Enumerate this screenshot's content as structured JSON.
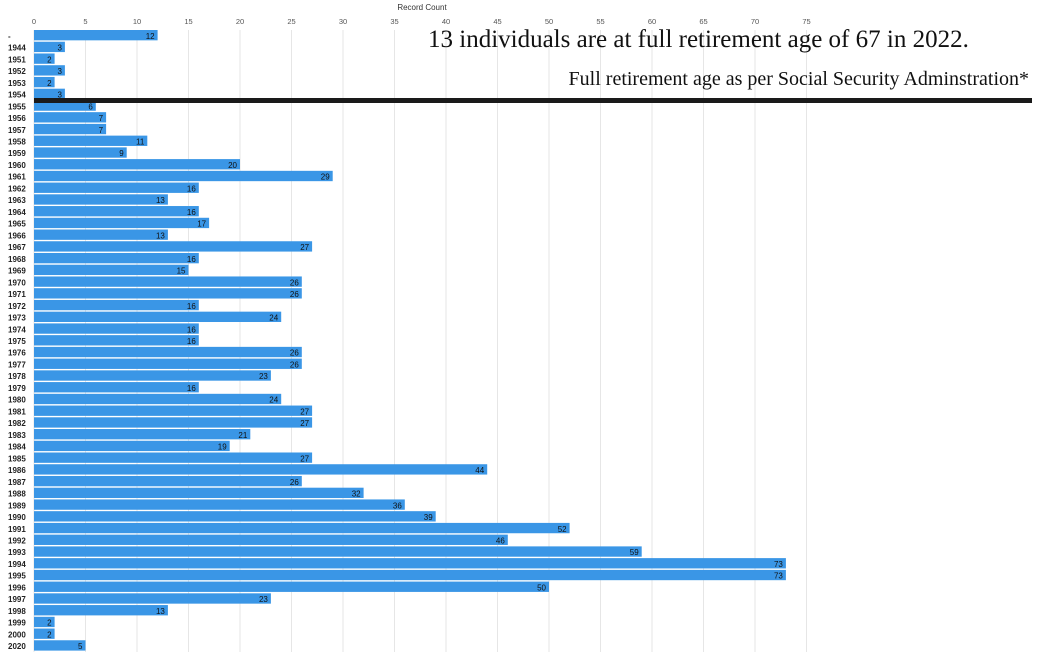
{
  "chart_data": {
    "type": "bar",
    "orientation": "horizontal",
    "axis_title": "Record Count",
    "x_ticks": [
      0,
      5,
      10,
      15,
      20,
      25,
      30,
      35,
      40,
      45,
      50,
      55,
      60,
      65,
      70,
      75
    ],
    "xlim": [
      0,
      75
    ],
    "grid": true,
    "categories": [
      "-",
      "1944",
      "1951",
      "1952",
      "1953",
      "1954",
      "1955",
      "1956",
      "1957",
      "1958",
      "1959",
      "1960",
      "1961",
      "1962",
      "1963",
      "1964",
      "1965",
      "1966",
      "1967",
      "1968",
      "1969",
      "1970",
      "1971",
      "1972",
      "1973",
      "1974",
      "1975",
      "1976",
      "1977",
      "1978",
      "1979",
      "1980",
      "1981",
      "1982",
      "1983",
      "1984",
      "1985",
      "1986",
      "1987",
      "1988",
      "1989",
      "1990",
      "1991",
      "1992",
      "1993",
      "1994",
      "1995",
      "1996",
      "1997",
      "1998",
      "1999",
      "2000",
      "2020"
    ],
    "values": [
      12,
      3,
      2,
      3,
      2,
      3,
      6,
      7,
      7,
      11,
      9,
      20,
      29,
      16,
      13,
      16,
      17,
      13,
      27,
      16,
      15,
      26,
      26,
      16,
      24,
      16,
      16,
      26,
      26,
      23,
      16,
      24,
      27,
      27,
      21,
      19,
      27,
      44,
      26,
      32,
      36,
      39,
      52,
      46,
      59,
      73,
      73,
      50,
      23,
      13,
      2,
      2,
      5
    ],
    "bar_color": "#3a96e6"
  },
  "annotation": {
    "main": "13 individuals are at full retirement age of 67 in 2022.",
    "sub": "Full retirement age as per Social Security Adminstration*",
    "divider_color": "#1a1a1a"
  }
}
